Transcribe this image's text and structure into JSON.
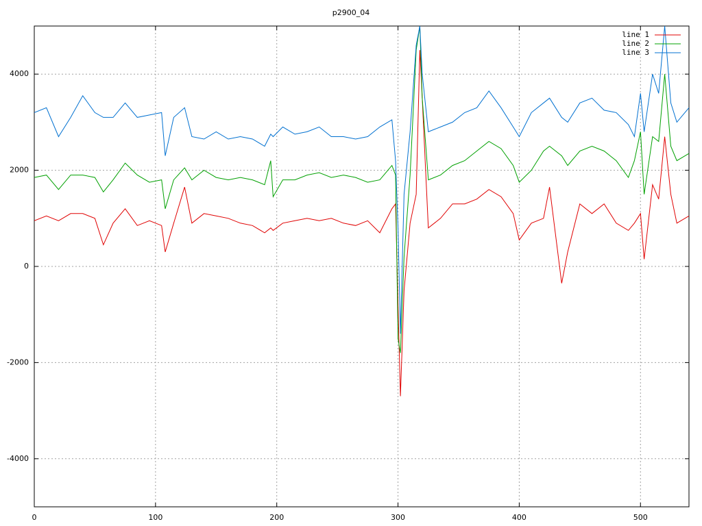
{
  "chart_data": {
    "type": "line",
    "title": "p2900_04",
    "x": [
      0,
      10,
      20,
      30,
      40,
      50,
      57,
      65,
      75,
      85,
      95,
      105,
      108,
      115,
      124,
      130,
      140,
      150,
      160,
      170,
      180,
      190,
      195,
      197,
      205,
      215,
      225,
      235,
      245,
      255,
      265,
      275,
      285,
      295,
      298,
      300,
      302,
      305,
      310,
      315,
      318,
      320,
      325,
      335,
      345,
      355,
      365,
      375,
      385,
      395,
      400,
      410,
      420,
      425,
      435,
      440,
      450,
      460,
      470,
      480,
      490,
      495,
      500,
      503,
      510,
      515,
      520,
      525,
      530,
      540
    ],
    "series": [
      {
        "name": "line 1",
        "color": "#e00000",
        "values": [
          950,
          1050,
          950,
          1100,
          1100,
          1000,
          450,
          900,
          1200,
          850,
          950,
          850,
          300,
          900,
          1650,
          900,
          1100,
          1050,
          1000,
          900,
          850,
          700,
          800,
          750,
          900,
          950,
          1000,
          950,
          1000,
          900,
          850,
          950,
          700,
          1200,
          1300,
          -800,
          -2700,
          -500,
          900,
          1500,
          4500,
          3500,
          800,
          1000,
          1300,
          1300,
          1400,
          1600,
          1450,
          1100,
          550,
          900,
          1000,
          1650,
          -350,
          300,
          1300,
          1100,
          1300,
          900,
          750,
          900,
          1100,
          150,
          1700,
          1400,
          2700,
          1500,
          900,
          1050
        ]
      },
      {
        "name": "line 2",
        "color": "#00a000",
        "values": [
          1850,
          1900,
          1600,
          1900,
          1900,
          1850,
          1550,
          1800,
          2150,
          1900,
          1750,
          1800,
          1200,
          1800,
          2050,
          1800,
          2000,
          1850,
          1800,
          1850,
          1800,
          1700,
          2200,
          1450,
          1800,
          1800,
          1900,
          1950,
          1850,
          1900,
          1850,
          1750,
          1800,
          2100,
          1900,
          -1500,
          -1800,
          200,
          1900,
          4500,
          5000,
          3500,
          1800,
          1900,
          2100,
          2200,
          2400,
          2600,
          2450,
          2100,
          1750,
          2000,
          2400,
          2500,
          2300,
          2100,
          2400,
          2500,
          2400,
          2200,
          1850,
          2200,
          2800,
          1500,
          2700,
          2600,
          4000,
          2500,
          2200,
          2350
        ]
      },
      {
        "name": "line 3",
        "color": "#0070d0",
        "values": [
          3200,
          3300,
          2700,
          3100,
          3550,
          3200,
          3100,
          3100,
          3400,
          3100,
          3150,
          3200,
          2300,
          3100,
          3300,
          2700,
          2650,
          2800,
          2650,
          2700,
          2650,
          2500,
          2750,
          2700,
          2900,
          2750,
          2800,
          2900,
          2700,
          2700,
          2650,
          2700,
          2900,
          3050,
          2200,
          800,
          -1400,
          1500,
          2800,
          4600,
          5000,
          4000,
          2800,
          2900,
          3000,
          3200,
          3300,
          3650,
          3300,
          2900,
          2700,
          3200,
          3400,
          3500,
          3100,
          3000,
          3400,
          3500,
          3250,
          3200,
          2950,
          2700,
          3600,
          2800,
          4000,
          3600,
          5000,
          3400,
          3000,
          3300
        ]
      }
    ],
    "xlim": [
      0,
      540
    ],
    "xticks": [
      0,
      100,
      200,
      300,
      400,
      500
    ],
    "ylim": [
      -5000,
      5000
    ],
    "yticks": [
      -4000,
      -2000,
      0,
      2000,
      4000
    ],
    "grid": true,
    "legend": "top-right"
  }
}
